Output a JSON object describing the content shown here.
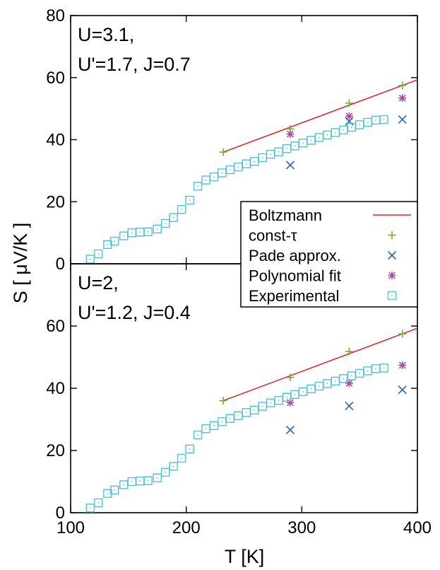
{
  "colors": {
    "boltzmann": "#e0202a",
    "const_tau": "#6fae2e",
    "pade": "#2f5fa8",
    "polynomial": "#a64c9e",
    "experimental": "#4fc3d0",
    "axis": "#000000"
  },
  "chart_data": {
    "type": "scatter",
    "xlabel": "T [K]",
    "ylabel": "S [ μV/K ]",
    "xlim": [
      100,
      400
    ],
    "xticks": [
      100,
      200,
      300,
      400
    ],
    "shared_x": true,
    "legend": {
      "placement": "right, spanning panel boundary",
      "entries": [
        {
          "label": "Boltzmann",
          "marker": "line",
          "color_key": "boltzmann"
        },
        {
          "label": "const-τ",
          "marker": "plus",
          "color_key": "const_tau"
        },
        {
          "label": "Pade approx.",
          "marker": "cross",
          "color_key": "pade"
        },
        {
          "label": "Polynomial fit",
          "marker": "asterisk",
          "color_key": "polynomial"
        },
        {
          "label": "Experimental",
          "marker": "square",
          "color_key": "experimental"
        }
      ]
    },
    "panels": [
      {
        "id": "top",
        "annotation": [
          "U=3.1,",
          "U'=1.7, J=0.7"
        ],
        "ylim": [
          0,
          80
        ],
        "yticks": [
          0,
          20,
          40,
          60,
          80
        ],
        "series": [
          {
            "name": "Boltzmann",
            "kind": "line",
            "x": [
              232,
              400
            ],
            "y": [
              36,
              59.3
            ]
          },
          {
            "name": "const-τ",
            "kind": "plus",
            "x": [
              232,
              290,
              341,
              387
            ],
            "y": [
              36,
              43.5,
              51.8,
              57.5
            ]
          },
          {
            "name": "Pade approx.",
            "kind": "cross",
            "x": [
              290,
              341,
              387
            ],
            "y": [
              31.8,
              45.9,
              46.5
            ]
          },
          {
            "name": "Polynomial fit",
            "kind": "asterisk",
            "x": [
              290,
              341,
              387
            ],
            "y": [
              41.8,
              47.6,
              53.4
            ]
          },
          {
            "name": "Experimental",
            "kind": "square",
            "x": [
              117,
              124,
              132,
              138,
              146,
              153,
              160,
              167,
              175,
              182,
              189,
              196,
              203,
              210,
              217,
              224,
              231,
              238,
              245,
              252,
              259,
              266,
              273,
              280,
              287,
              294,
              301,
              308,
              315,
              322,
              329,
              336,
              343,
              350,
              357,
              364,
              371
            ],
            "y": [
              1.5,
              3.2,
              6.2,
              7.3,
              9.0,
              10.0,
              10.2,
              10.3,
              11.2,
              13.0,
              14.9,
              17.5,
              20.5,
              25.0,
              27.0,
              28.0,
              29.3,
              30.3,
              31.2,
              32.2,
              33.0,
              34.2,
              35.3,
              36.1,
              37.1,
              38.0,
              38.9,
              39.8,
              40.7,
              41.5,
              42.3,
              43.1,
              44.0,
              44.8,
              45.6,
              46.3,
              46.5
            ]
          }
        ]
      },
      {
        "id": "bottom",
        "annotation": [
          "U=2,",
          "U'=1.2, J=0.4"
        ],
        "ylim": [
          0,
          80
        ],
        "yticks": [
          0,
          20,
          40,
          60
        ],
        "series": [
          {
            "name": "Boltzmann",
            "kind": "line",
            "x": [
              232,
              400
            ],
            "y": [
              36,
              59.3
            ]
          },
          {
            "name": "const-τ",
            "kind": "plus",
            "x": [
              232,
              290,
              341,
              387
            ],
            "y": [
              36,
              43.5,
              51.8,
              57.5
            ]
          },
          {
            "name": "Pade approx.",
            "kind": "cross",
            "x": [
              290,
              341,
              387
            ],
            "y": [
              26.6,
              34.3,
              39.5
            ]
          },
          {
            "name": "Polynomial fit",
            "kind": "asterisk",
            "x": [
              290,
              341,
              387
            ],
            "y": [
              35.4,
              41.6,
              47.4
            ]
          },
          {
            "name": "Experimental",
            "kind": "square",
            "x": [
              117,
              124,
              132,
              138,
              146,
              153,
              160,
              167,
              175,
              182,
              189,
              196,
              203,
              210,
              217,
              224,
              231,
              238,
              245,
              252,
              259,
              266,
              273,
              280,
              287,
              294,
              301,
              308,
              315,
              322,
              329,
              336,
              343,
              350,
              357,
              364,
              371
            ],
            "y": [
              1.5,
              3.2,
              6.2,
              7.3,
              9.0,
              10.0,
              10.2,
              10.3,
              11.2,
              13.0,
              14.9,
              17.5,
              20.5,
              25.0,
              27.0,
              28.0,
              29.3,
              30.3,
              31.2,
              32.2,
              33.0,
              34.2,
              35.3,
              36.1,
              37.1,
              38.0,
              38.9,
              39.8,
              40.7,
              41.5,
              42.3,
              43.1,
              44.0,
              44.8,
              45.6,
              46.3,
              46.5
            ]
          }
        ]
      }
    ]
  }
}
